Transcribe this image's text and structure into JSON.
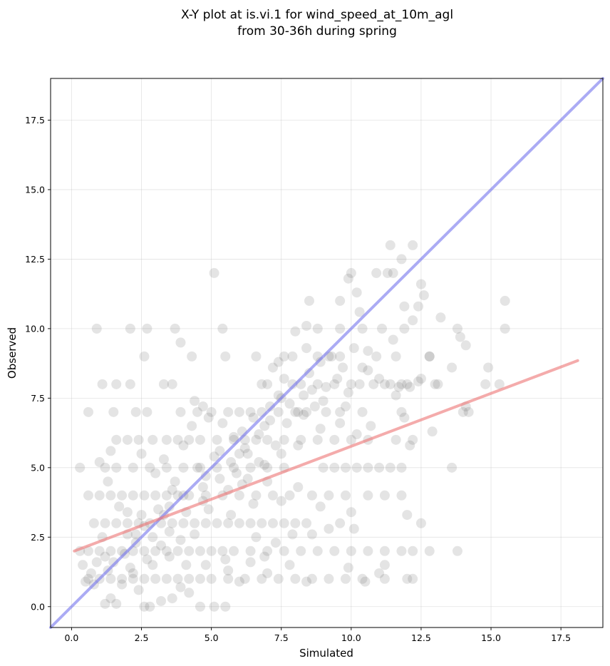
{
  "chart_data": {
    "type": "scatter",
    "title": [
      "X-Y plot at is.vi.1 for wind_speed_at_10m_agl",
      "from 30-36h during spring"
    ],
    "xlabel": "Simulated",
    "ylabel": "Observed",
    "xlim": [
      -0.75,
      19.0
    ],
    "ylim": [
      -0.75,
      19.0
    ],
    "xticks": [
      "0.0",
      "2.5",
      "5.0",
      "7.5",
      "10.0",
      "12.5",
      "15.0",
      "17.5"
    ],
    "yticks": [
      "0.0",
      "2.5",
      "5.0",
      "7.5",
      "10.0",
      "12.5",
      "15.0",
      "17.5"
    ],
    "grid": true,
    "colors": {
      "points": "#555555",
      "identity_line": "#7777ee",
      "fit_line": "#ee7777"
    },
    "lines": [
      {
        "role": "identity",
        "x": [
          -0.75,
          19.0
        ],
        "y": [
          -0.75,
          19.0
        ]
      },
      {
        "role": "fit",
        "x": [
          0.1,
          18.1
        ],
        "y": [
          2.0,
          8.85
        ]
      }
    ],
    "points": [
      [
        0.3,
        5.0
      ],
      [
        0.6,
        7.0
      ],
      [
        0.9,
        10.0
      ],
      [
        2.1,
        10.0
      ],
      [
        2.7,
        10.0
      ],
      [
        3.7,
        10.0
      ],
      [
        5.4,
        10.0
      ],
      [
        5.1,
        12.0
      ],
      [
        2.6,
        9.0
      ],
      [
        2.1,
        8.0
      ],
      [
        1.6,
        8.0
      ],
      [
        1.1,
        8.0
      ],
      [
        2.3,
        7.0
      ],
      [
        2.7,
        7.0
      ],
      [
        3.9,
        7.0
      ],
      [
        4.5,
        7.0
      ],
      [
        3.6,
        8.0
      ],
      [
        3.3,
        8.0
      ],
      [
        1.5,
        7.0
      ],
      [
        4.3,
        9.0
      ],
      [
        5.5,
        9.0
      ],
      [
        3.9,
        9.5
      ],
      [
        4.7,
        7.2
      ],
      [
        4.4,
        7.4
      ],
      [
        1.2,
        5.0
      ],
      [
        1.4,
        5.6
      ],
      [
        1.6,
        6.0
      ],
      [
        2.0,
        6.0
      ],
      [
        2.4,
        6.0
      ],
      [
        2.9,
        6.0
      ],
      [
        3.4,
        6.0
      ],
      [
        3.8,
        6.0
      ],
      [
        4.2,
        6.0
      ],
      [
        4.6,
        6.0
      ],
      [
        5.2,
        6.0
      ],
      [
        5.8,
        6.0
      ],
      [
        6.2,
        6.0
      ],
      [
        6.6,
        6.0
      ],
      [
        7.0,
        6.0
      ],
      [
        7.6,
        6.0
      ],
      [
        8.2,
        6.0
      ],
      [
        8.8,
        6.0
      ],
      [
        9.4,
        6.0
      ],
      [
        10.0,
        6.0
      ],
      [
        10.6,
        6.0
      ],
      [
        11.6,
        6.0
      ],
      [
        12.2,
        6.0
      ],
      [
        0.6,
        4.0
      ],
      [
        1.0,
        4.0
      ],
      [
        1.4,
        4.0
      ],
      [
        1.8,
        4.0
      ],
      [
        2.2,
        4.0
      ],
      [
        2.6,
        4.0
      ],
      [
        3.0,
        4.0
      ],
      [
        3.4,
        4.0
      ],
      [
        3.8,
        4.0
      ],
      [
        4.2,
        4.0
      ],
      [
        4.8,
        4.0
      ],
      [
        5.4,
        4.0
      ],
      [
        6.0,
        4.0
      ],
      [
        6.6,
        4.0
      ],
      [
        7.2,
        4.0
      ],
      [
        7.8,
        4.0
      ],
      [
        8.6,
        4.0
      ],
      [
        9.2,
        4.0
      ],
      [
        9.8,
        4.0
      ],
      [
        10.6,
        4.0
      ],
      [
        11.2,
        4.0
      ],
      [
        11.8,
        4.0
      ],
      [
        0.8,
        3.0
      ],
      [
        1.2,
        3.0
      ],
      [
        1.6,
        3.0
      ],
      [
        2.0,
        3.0
      ],
      [
        2.4,
        3.0
      ],
      [
        2.8,
        3.0
      ],
      [
        3.2,
        3.0
      ],
      [
        3.6,
        3.0
      ],
      [
        4.0,
        3.0
      ],
      [
        4.4,
        3.0
      ],
      [
        4.8,
        3.0
      ],
      [
        5.2,
        3.0
      ],
      [
        5.6,
        3.0
      ],
      [
        6.0,
        3.0
      ],
      [
        6.4,
        3.0
      ],
      [
        6.8,
        3.0
      ],
      [
        7.2,
        3.0
      ],
      [
        7.6,
        3.0
      ],
      [
        8.0,
        3.0
      ],
      [
        8.4,
        3.0
      ],
      [
        12.5,
        3.0
      ],
      [
        0.6,
        2.0
      ],
      [
        1.0,
        2.0
      ],
      [
        1.4,
        2.0
      ],
      [
        1.8,
        2.0
      ],
      [
        2.2,
        2.0
      ],
      [
        2.6,
        2.0
      ],
      [
        3.0,
        2.0
      ],
      [
        3.4,
        2.0
      ],
      [
        3.8,
        2.0
      ],
      [
        4.2,
        2.0
      ],
      [
        4.6,
        2.0
      ],
      [
        5.0,
        2.0
      ],
      [
        5.4,
        2.0
      ],
      [
        5.8,
        2.0
      ],
      [
        6.4,
        2.0
      ],
      [
        7.0,
        2.0
      ],
      [
        7.6,
        2.0
      ],
      [
        8.2,
        2.0
      ],
      [
        8.8,
        2.0
      ],
      [
        9.4,
        2.0
      ],
      [
        10.0,
        2.0
      ],
      [
        10.6,
        2.0
      ],
      [
        11.2,
        2.0
      ],
      [
        11.8,
        2.0
      ],
      [
        12.2,
        2.0
      ],
      [
        12.8,
        2.0
      ],
      [
        13.8,
        2.0
      ],
      [
        0.6,
        1.0
      ],
      [
        1.0,
        1.0
      ],
      [
        1.4,
        1.0
      ],
      [
        1.8,
        1.0
      ],
      [
        2.2,
        1.0
      ],
      [
        2.6,
        1.0
      ],
      [
        3.0,
        1.0
      ],
      [
        3.4,
        1.0
      ],
      [
        3.8,
        1.0
      ],
      [
        4.2,
        1.0
      ],
      [
        4.6,
        1.0
      ],
      [
        5.0,
        1.0
      ],
      [
        5.6,
        1.0
      ],
      [
        6.2,
        1.0
      ],
      [
        6.8,
        1.0
      ],
      [
        7.4,
        1.0
      ],
      [
        8.0,
        1.0
      ],
      [
        8.6,
        1.0
      ],
      [
        9.2,
        1.0
      ],
      [
        9.8,
        1.0
      ],
      [
        10.4,
        1.0
      ],
      [
        11.2,
        1.0
      ],
      [
        12.0,
        1.0
      ],
      [
        12.2,
        1.0
      ],
      [
        1.2,
        0.1
      ],
      [
        2.6,
        0.0
      ],
      [
        2.8,
        0.0
      ],
      [
        3.2,
        0.2
      ],
      [
        4.6,
        0.0
      ],
      [
        5.1,
        0.0
      ],
      [
        5.5,
        0.0
      ],
      [
        0.3,
        2.0
      ],
      [
        0.4,
        1.5
      ],
      [
        1.0,
        5.2
      ],
      [
        1.3,
        4.5
      ],
      [
        1.7,
        3.6
      ],
      [
        2.0,
        3.4
      ],
      [
        2.3,
        2.6
      ],
      [
        2.5,
        3.3
      ],
      [
        2.9,
        2.5
      ],
      [
        3.1,
        3.5
      ],
      [
        3.5,
        2.7
      ],
      [
        3.7,
        4.5
      ],
      [
        4.1,
        3.4
      ],
      [
        4.5,
        5.0
      ],
      [
        4.7,
        4.3
      ],
      [
        5.1,
        5.4
      ],
      [
        5.3,
        4.6
      ],
      [
        5.7,
        5.2
      ],
      [
        5.9,
        4.8
      ],
      [
        6.1,
        6.3
      ],
      [
        6.3,
        5.5
      ],
      [
        6.5,
        6.8
      ],
      [
        6.7,
        5.2
      ],
      [
        6.9,
        6.5
      ],
      [
        7.1,
        7.2
      ],
      [
        7.3,
        5.8
      ],
      [
        7.5,
        7.5
      ],
      [
        7.7,
        6.6
      ],
      [
        7.9,
        8.0
      ],
      [
        8.1,
        7.0
      ],
      [
        8.3,
        7.6
      ],
      [
        8.5,
        8.4
      ],
      [
        8.7,
        7.2
      ],
      [
        8.9,
        8.8
      ],
      [
        9.1,
        7.9
      ],
      [
        9.3,
        9.0
      ],
      [
        9.5,
        8.2
      ],
      [
        9.7,
        8.6
      ],
      [
        9.9,
        7.7
      ],
      [
        10.1,
        9.3
      ],
      [
        10.3,
        8.0
      ],
      [
        10.6,
        8.5
      ],
      [
        10.9,
        9.0
      ],
      [
        11.2,
        8.0
      ],
      [
        11.5,
        9.6
      ],
      [
        11.8,
        8.0
      ],
      [
        12.1,
        7.9
      ],
      [
        12.4,
        8.1
      ],
      [
        12.8,
        9.0
      ],
      [
        13.1,
        8.0
      ],
      [
        2.5,
        5.5
      ],
      [
        3.0,
        4.8
      ],
      [
        3.3,
        5.3
      ],
      [
        3.6,
        4.2
      ],
      [
        4.0,
        5.8
      ],
      [
        4.3,
        6.5
      ],
      [
        4.9,
        6.8
      ],
      [
        5.6,
        7.0
      ],
      [
        6.0,
        7.0
      ],
      [
        6.4,
        7.0
      ],
      [
        6.8,
        7.0
      ],
      [
        7.4,
        7.0
      ],
      [
        8.0,
        7.0
      ],
      [
        8.4,
        7.0
      ],
      [
        9.6,
        7.0
      ],
      [
        10.4,
        7.0
      ],
      [
        11.8,
        7.0
      ],
      [
        14.0,
        7.0
      ],
      [
        5.0,
        7.0
      ],
      [
        5.4,
        6.6
      ],
      [
        5.8,
        6.1
      ],
      [
        6.2,
        5.7
      ],
      [
        7.4,
        8.8
      ],
      [
        7.6,
        9.0
      ],
      [
        7.9,
        9.0
      ],
      [
        8.4,
        9.3
      ],
      [
        8.8,
        9.0
      ],
      [
        9.2,
        9.0
      ],
      [
        9.6,
        9.0
      ],
      [
        10.6,
        9.2
      ],
      [
        11.6,
        9.0
      ],
      [
        12.8,
        9.0
      ],
      [
        6.6,
        9.0
      ],
      [
        7.0,
        8.0
      ],
      [
        7.6,
        8.2
      ],
      [
        8.2,
        8.0
      ],
      [
        8.8,
        8.0
      ],
      [
        9.4,
        8.0
      ],
      [
        10.0,
        8.0
      ],
      [
        10.8,
        8.0
      ],
      [
        11.4,
        8.0
      ],
      [
        12.0,
        8.0
      ],
      [
        13.0,
        8.0
      ],
      [
        14.8,
        8.0
      ],
      [
        15.3,
        8.0
      ],
      [
        14.9,
        8.6
      ],
      [
        13.6,
        8.6
      ],
      [
        8.4,
        10.1
      ],
      [
        8.0,
        9.9
      ],
      [
        8.8,
        10.0
      ],
      [
        9.6,
        10.0
      ],
      [
        10.4,
        10.0
      ],
      [
        11.1,
        10.0
      ],
      [
        11.9,
        10.0
      ],
      [
        13.8,
        10.0
      ],
      [
        15.5,
        10.0
      ],
      [
        12.2,
        10.3
      ],
      [
        13.2,
        10.4
      ],
      [
        14.1,
        9.4
      ],
      [
        13.9,
        9.7
      ],
      [
        8.5,
        11.0
      ],
      [
        9.6,
        11.0
      ],
      [
        9.9,
        11.8
      ],
      [
        10.0,
        12.0
      ],
      [
        10.2,
        11.3
      ],
      [
        10.9,
        12.0
      ],
      [
        11.3,
        12.0
      ],
      [
        11.5,
        12.0
      ],
      [
        11.8,
        12.5
      ],
      [
        12.5,
        11.6
      ],
      [
        12.6,
        11.2
      ],
      [
        12.4,
        10.8
      ],
      [
        11.4,
        13.0
      ],
      [
        12.2,
        13.0
      ],
      [
        11.9,
        10.8
      ],
      [
        10.3,
        10.6
      ],
      [
        15.5,
        11.0
      ],
      [
        14.2,
        7.0
      ],
      [
        14.1,
        7.2
      ],
      [
        12.9,
        6.3
      ],
      [
        12.1,
        5.8
      ],
      [
        12.0,
        3.3
      ],
      [
        13.6,
        5.0
      ],
      [
        12.5,
        8.2
      ],
      [
        11.7,
        7.9
      ],
      [
        9.0,
        5.0
      ],
      [
        9.4,
        5.0
      ],
      [
        9.8,
        5.0
      ],
      [
        10.2,
        5.0
      ],
      [
        10.6,
        5.0
      ],
      [
        11.0,
        5.0
      ],
      [
        11.4,
        5.0
      ],
      [
        11.8,
        5.0
      ],
      [
        7.6,
        5.0
      ],
      [
        7.0,
        5.0
      ],
      [
        6.4,
        5.0
      ],
      [
        5.8,
        5.0
      ],
      [
        5.2,
        5.0
      ],
      [
        4.6,
        5.0
      ],
      [
        4.0,
        5.0
      ],
      [
        3.4,
        5.0
      ],
      [
        2.8,
        5.0
      ],
      [
        2.2,
        5.0
      ],
      [
        1.6,
        5.0
      ],
      [
        10.0,
        3.4
      ],
      [
        10.1,
        2.8
      ],
      [
        9.9,
        1.4
      ],
      [
        11.0,
        1.2
      ],
      [
        11.2,
        1.5
      ],
      [
        10.5,
        0.9
      ],
      [
        8.4,
        0.9
      ],
      [
        7.8,
        1.5
      ],
      [
        7.0,
        1.2
      ],
      [
        6.4,
        1.6
      ],
      [
        6.0,
        0.9
      ],
      [
        5.6,
        1.3
      ],
      [
        4.2,
        0.5
      ],
      [
        3.6,
        0.3
      ],
      [
        3.9,
        0.7
      ],
      [
        2.4,
        0.6
      ],
      [
        1.8,
        0.8
      ],
      [
        1.4,
        0.3
      ],
      [
        1.6,
        0.1
      ],
      [
        1.2,
        1.8
      ],
      [
        1.1,
        2.5
      ],
      [
        0.9,
        1.6
      ],
      [
        0.7,
        1.2
      ],
      [
        0.5,
        0.9
      ],
      [
        2.1,
        1.4
      ],
      [
        2.9,
        1.5
      ],
      [
        3.5,
        1.8
      ],
      [
        4.1,
        1.5
      ],
      [
        4.8,
        1.5
      ],
      [
        5.5,
        1.7
      ],
      [
        6.6,
        2.5
      ],
      [
        6.9,
        1.8
      ],
      [
        7.3,
        2.3
      ],
      [
        7.9,
        2.6
      ],
      [
        8.6,
        2.6
      ],
      [
        9.2,
        2.8
      ],
      [
        9.6,
        3.0
      ],
      [
        8.9,
        3.6
      ],
      [
        8.1,
        4.3
      ],
      [
        7.5,
        3.8
      ],
      [
        7.0,
        4.5
      ],
      [
        6.5,
        3.7
      ],
      [
        6.1,
        4.4
      ],
      [
        5.7,
        3.3
      ],
      [
        4.9,
        3.5
      ],
      [
        4.4,
        2.6
      ],
      [
        3.9,
        2.4
      ],
      [
        3.2,
        2.2
      ],
      [
        2.7,
        1.7
      ],
      [
        2.2,
        1.2
      ],
      [
        1.9,
        1.9
      ],
      [
        1.5,
        1.6
      ],
      [
        6.8,
        8.0
      ],
      [
        7.2,
        8.6
      ],
      [
        7.4,
        7.6
      ],
      [
        8.6,
        7.8
      ],
      [
        9.0,
        7.4
      ],
      [
        9.8,
        7.2
      ],
      [
        10.4,
        8.6
      ],
      [
        11.0,
        8.2
      ],
      [
        11.6,
        7.6
      ],
      [
        11.9,
        6.8
      ],
      [
        10.7,
        6.5
      ],
      [
        10.2,
        6.2
      ],
      [
        9.6,
        6.6
      ],
      [
        8.9,
        6.4
      ],
      [
        8.1,
        5.8
      ],
      [
        7.5,
        5.5
      ],
      [
        6.9,
        5.1
      ],
      [
        6.3,
        4.6
      ],
      [
        5.6,
        4.2
      ],
      [
        4.7,
        3.8
      ],
      [
        3.5,
        3.6
      ],
      [
        2.3,
        2.3
      ],
      [
        1.3,
        1.3
      ],
      [
        0.8,
        0.8
      ],
      [
        2.0,
        2.6
      ],
      [
        2.6,
        2.9
      ],
      [
        3.3,
        3.3
      ],
      [
        4.0,
        4.0
      ],
      [
        4.8,
        4.7
      ],
      [
        5.3,
        5.6
      ],
      [
        6.0,
        5.5
      ],
      [
        6.7,
        6.2
      ],
      [
        7.1,
        6.7
      ],
      [
        7.8,
        7.3
      ],
      [
        8.3,
        6.9
      ],
      [
        9.1,
        7.0
      ]
    ]
  }
}
